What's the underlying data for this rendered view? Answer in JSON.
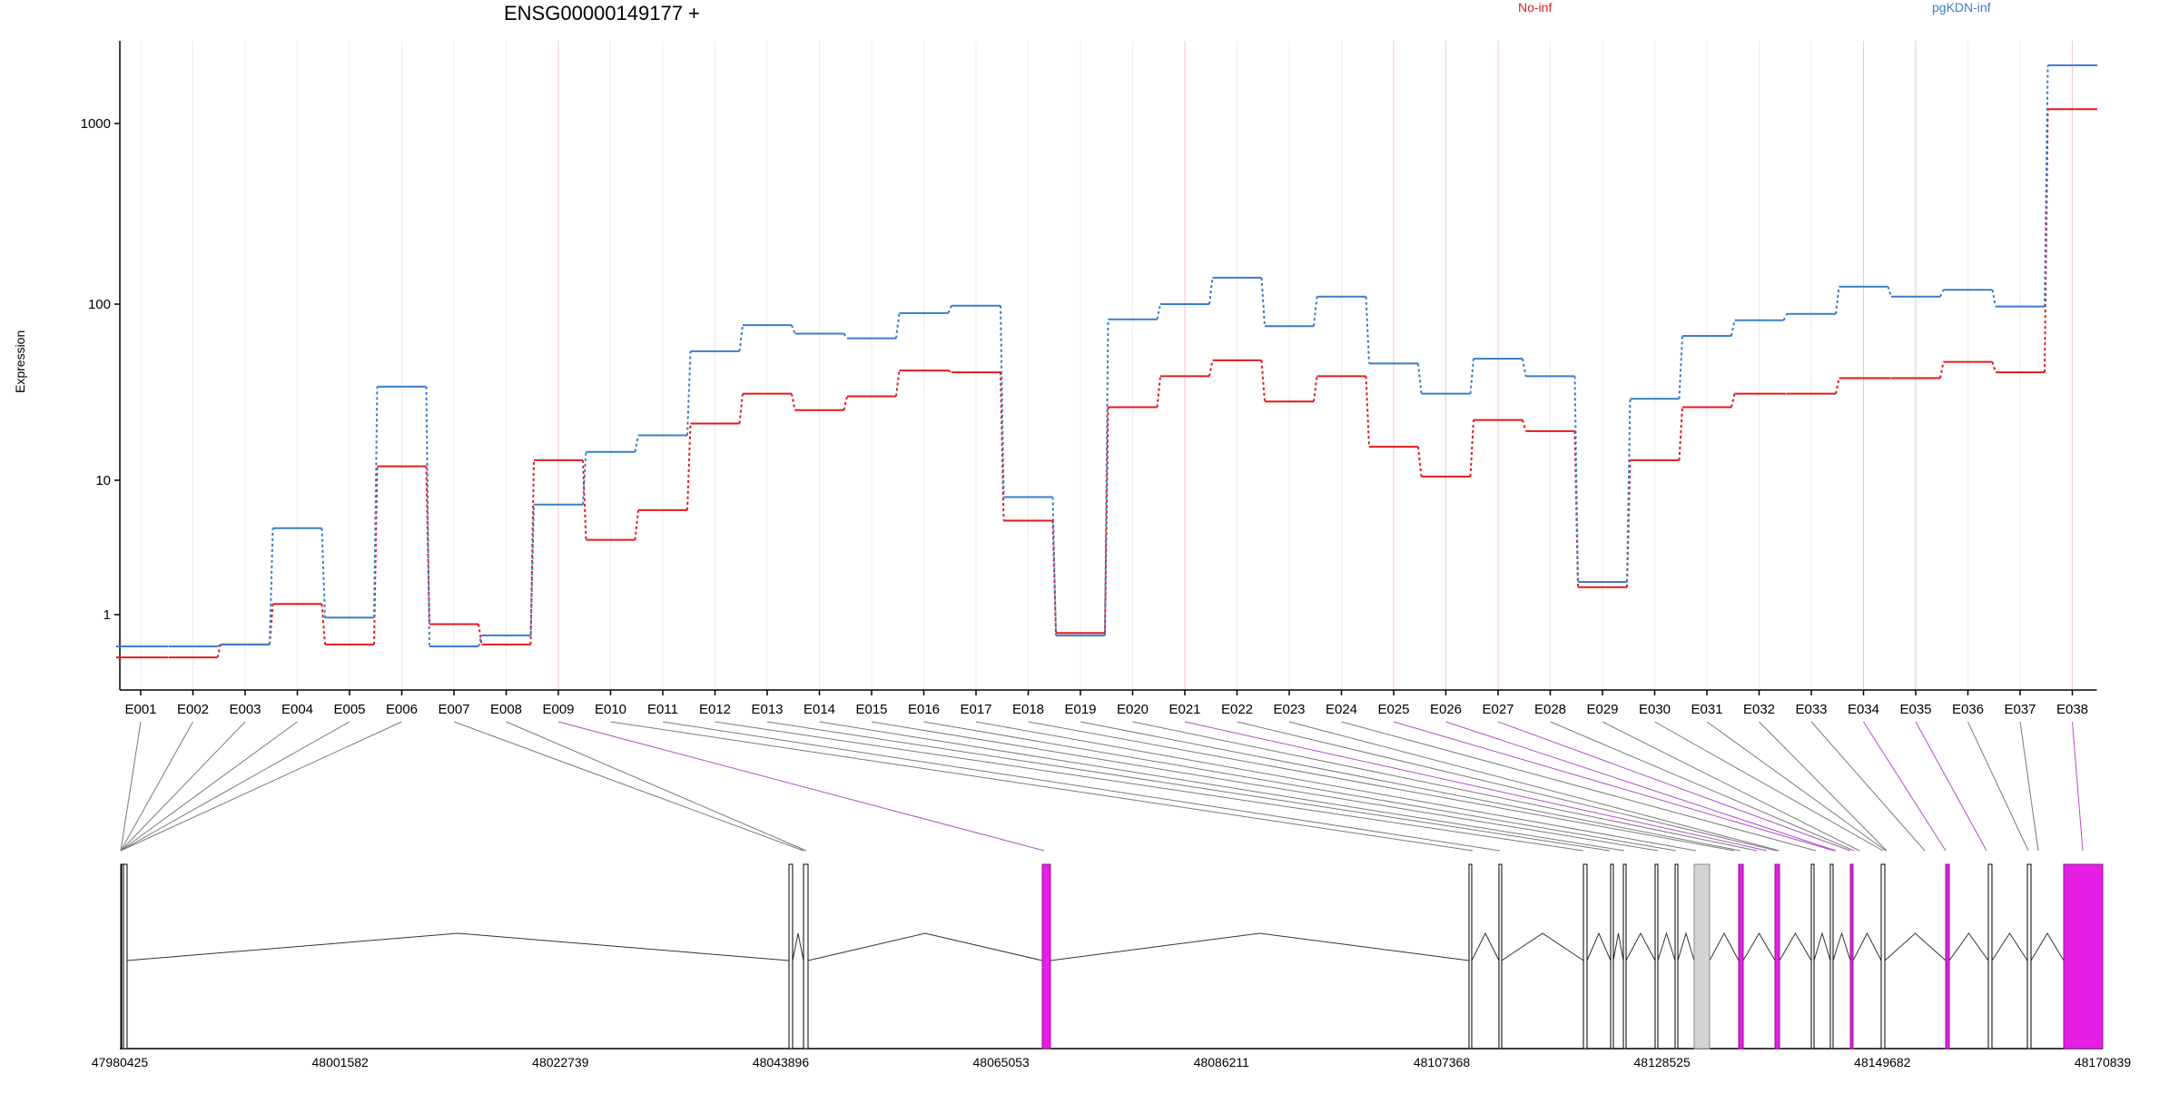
{
  "chart_data": {
    "type": "line",
    "title": "ENSG00000149177 +",
    "ylabel": "Expression",
    "yscale": "log",
    "ylim": [
      0.4,
      3000
    ],
    "yticks": [
      1,
      10,
      100,
      1000
    ],
    "ytick_labels": [
      "1",
      "10",
      "100",
      "1000"
    ],
    "categories": [
      "E001",
      "E002",
      "E003",
      "E004",
      "E005",
      "E006",
      "E007",
      "E008",
      "E009",
      "E010",
      "E011",
      "E012",
      "E013",
      "E014",
      "E015",
      "E016",
      "E017",
      "E018",
      "E019",
      "E020",
      "E021",
      "E022",
      "E023",
      "E024",
      "E025",
      "E026",
      "E027",
      "E028",
      "E029",
      "E030",
      "E031",
      "E032",
      "E033",
      "E034",
      "E035",
      "E036",
      "E037",
      "E038"
    ],
    "series": [
      {
        "name": "No-inf",
        "color": "#e31a1c",
        "values": [
          0.48,
          0.48,
          0.6,
          1.2,
          0.6,
          12,
          0.85,
          0.6,
          13,
          3.6,
          6,
          21,
          31,
          25,
          30,
          42,
          41,
          5,
          0.73,
          26,
          39,
          48,
          28,
          39,
          15.5,
          10.5,
          22,
          19,
          1.6,
          13,
          26,
          31,
          31,
          38,
          38,
          47,
          41,
          1200
        ]
      },
      {
        "name": "pgKDN-inf",
        "color": "#3a7dc9",
        "values": [
          0.58,
          0.58,
          0.6,
          4.4,
          0.95,
          34,
          0.58,
          0.7,
          6.6,
          14.5,
          18,
          54,
          76,
          68,
          64,
          89,
          98,
          7.5,
          0.7,
          82,
          100,
          140,
          75,
          110,
          46,
          31,
          49,
          39,
          1.75,
          29,
          66,
          81,
          88,
          125,
          110,
          120,
          97,
          2100
        ]
      }
    ],
    "highlighted_exons": [
      "E009",
      "E021",
      "E025",
      "E026",
      "E027",
      "E034",
      "E035",
      "E038"
    ],
    "highlight_color": "#e61ee6",
    "genomic_axis": {
      "ticks": [
        "47980425",
        "48001582",
        "48022739",
        "48043896",
        "48065053",
        "48086211",
        "48107368",
        "48128525",
        "48149682",
        "48170839"
      ]
    },
    "legend_placement": "top"
  }
}
